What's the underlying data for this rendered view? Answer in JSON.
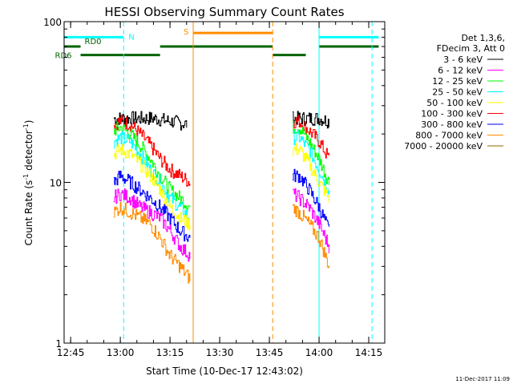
{
  "chart_data": {
    "type": "line",
    "title": "HESSI Observing Summary Count Rates",
    "xlabel": "Start Time (10-Dec-17 12:43:02)",
    "ylabel": "Count Rate (s⁻¹ detector⁻¹)",
    "ylabel_parts": {
      "base": "Count Rate (s",
      "exp1": "-1",
      "mid": " detector",
      "exp2": "-1",
      "end": ")"
    },
    "y_scale": "log",
    "ylim": [
      1,
      100
    ],
    "xlim": [
      "12:43:02",
      "14:19:50"
    ],
    "x_ticks": [
      "12:45",
      "13:00",
      "13:15",
      "13:30",
      "13:45",
      "14:00",
      "14:15"
    ],
    "y_ticks": [
      "1",
      "10",
      "100"
    ],
    "footer_timestamp": "11-Dec-2017 11:09",
    "legend": {
      "header_lines": [
        "Det 1,3,6,",
        "FDecim 3, Att 0"
      ],
      "items": [
        {
          "label": "3 - 6 keV",
          "color": "#000000"
        },
        {
          "label": "6 - 12 keV",
          "color": "#ff00ff"
        },
        {
          "label": "12 - 25 keV",
          "color": "#00ff00"
        },
        {
          "label": "25 - 50 keV",
          "color": "#00ffff"
        },
        {
          "label": "50 - 100 keV",
          "color": "#ffff00"
        },
        {
          "label": "100 - 300 keV",
          "color": "#ff0000"
        },
        {
          "label": "300 - 800 keV",
          "color": "#0000ff"
        },
        {
          "label": "800 - 7000 keV",
          "color": "#ff8c00"
        },
        {
          "label": "7000 - 20000 keV",
          "color": "#996600"
        }
      ]
    },
    "series": [
      {
        "name": "3 - 6 keV",
        "color": "#000000",
        "segments": [
          {
            "t": [
              "12:58",
              "13:05",
              "13:10",
              "13:15",
              "13:20"
            ],
            "v": [
              25,
              25,
              25,
              24,
              23
            ]
          },
          {
            "t": [
              "13:52",
              "13:55",
              "14:00",
              "14:03"
            ],
            "v": [
              25,
              25,
              25,
              24
            ]
          }
        ]
      },
      {
        "name": "100 - 300 keV",
        "color": "#ff0000",
        "segments": [
          {
            "t": [
              "12:58",
              "13:00",
              "13:03",
              "13:06",
              "13:09",
              "13:12",
              "13:15",
              "13:18",
              "13:21"
            ],
            "v": [
              23,
              24,
              23,
              20,
              17,
              14,
              12,
              11,
              10
            ]
          },
          {
            "t": [
              "13:52",
              "13:54",
              "13:57",
              "14:00",
              "14:03"
            ],
            "v": [
              24,
              24,
              21,
              18,
              14
            ]
          }
        ]
      },
      {
        "name": "12 - 25 keV",
        "color": "#00ff00",
        "segments": [
          {
            "t": [
              "12:58",
              "13:00",
              "13:03",
              "13:06",
              "13:09",
              "13:12",
              "13:15",
              "13:18",
              "13:21"
            ],
            "v": [
              21,
              22,
              20,
              17,
              14,
              11,
              9,
              8,
              7
            ]
          },
          {
            "t": [
              "13:52",
              "13:54",
              "13:57",
              "14:00",
              "14:03"
            ],
            "v": [
              22,
              22,
              18,
              14,
              10
            ]
          }
        ]
      },
      {
        "name": "25 - 50 keV",
        "color": "#00ffff",
        "segments": [
          {
            "t": [
              "12:58",
              "13:00",
              "13:03",
              "13:06",
              "13:09",
              "13:12",
              "13:15",
              "13:18",
              "13:21"
            ],
            "v": [
              18,
              19,
              18,
              15,
              12,
              10,
              8,
              7,
              6
            ]
          },
          {
            "t": [
              "13:52",
              "13:54",
              "13:57",
              "14:00",
              "14:03"
            ],
            "v": [
              19,
              19,
              16,
              12,
              9
            ]
          }
        ]
      },
      {
        "name": "50 - 100 keV",
        "color": "#ffff00",
        "segments": [
          {
            "t": [
              "12:58",
              "13:00",
              "13:03",
              "13:06",
              "13:09",
              "13:12",
              "13:15",
              "13:18",
              "13:21"
            ],
            "v": [
              15,
              16,
              15,
              13,
              11,
              9,
              7,
              6,
              5.5
            ]
          },
          {
            "t": [
              "13:52",
              "13:54",
              "13:57",
              "14:00",
              "14:03"
            ],
            "v": [
              16,
              16,
              13,
              10,
              8
            ]
          }
        ]
      },
      {
        "name": "300 - 800 keV",
        "color": "#0000ff",
        "segments": [
          {
            "t": [
              "12:58",
              "13:00",
              "13:03",
              "13:06",
              "13:09",
              "13:12",
              "13:15",
              "13:18",
              "13:21"
            ],
            "v": [
              10,
              11,
              10,
              9,
              8,
              7,
              6,
              5,
              4.5
            ]
          },
          {
            "t": [
              "13:52",
              "13:54",
              "13:57",
              "14:00",
              "14:03"
            ],
            "v": [
              11,
              11,
              9,
              7,
              5
            ]
          }
        ]
      },
      {
        "name": "6 - 12 keV",
        "color": "#ff00ff",
        "segments": [
          {
            "t": [
              "12:58",
              "13:00",
              "13:03",
              "13:06",
              "13:09",
              "13:12",
              "13:15",
              "13:18",
              "13:21"
            ],
            "v": [
              8,
              8.5,
              8,
              7,
              6.5,
              6,
              5,
              4,
              3.5
            ]
          },
          {
            "t": [
              "13:52",
              "13:54",
              "13:57",
              "14:00",
              "14:03"
            ],
            "v": [
              8.5,
              8,
              7,
              5.5,
              4
            ]
          }
        ]
      },
      {
        "name": "800 - 7000 keV",
        "color": "#ff8c00",
        "segments": [
          {
            "t": [
              "12:58",
              "13:00",
              "13:03",
              "13:06",
              "13:09",
              "13:12",
              "13:15",
              "13:18",
              "13:21"
            ],
            "v": [
              6.5,
              7,
              6.5,
              6,
              5.5,
              4.5,
              3.5,
              3,
              2.5
            ]
          },
          {
            "t": [
              "13:52",
              "13:54",
              "13:57",
              "14:00",
              "14:03"
            ],
            "v": [
              7,
              6.5,
              5.5,
              4.5,
              3
            ]
          }
        ]
      }
    ],
    "status_bars": [
      {
        "label": "N",
        "color": "#00ffff",
        "segments": [
          [
            "12:43",
            "13:01"
          ],
          [
            "14:00",
            "14:18"
          ]
        ],
        "level": 80
      },
      {
        "label": "S",
        "color": "#ff8c00",
        "segments": [
          [
            "13:22",
            "13:46"
          ]
        ],
        "level": 85
      },
      {
        "label": "RD0",
        "color": "#006400",
        "segments": [
          [
            "12:43",
            "12:48"
          ],
          [
            "13:12",
            "13:46"
          ],
          [
            "14:00",
            "14:18"
          ]
        ],
        "level": 70
      },
      {
        "label": "RD6",
        "color": "#006400",
        "segments": [
          [
            "12:48",
            "13:12"
          ],
          [
            "13:46",
            "13:56"
          ]
        ],
        "level": 62
      }
    ],
    "vertical_lines": [
      {
        "t": "12:43",
        "color": "#00ffff",
        "style": "solid"
      },
      {
        "t": "13:01",
        "color": "#00ffff",
        "style": "dashed"
      },
      {
        "t": "13:22",
        "color": "#ff8c00",
        "style": "solid"
      },
      {
        "t": "13:46",
        "color": "#ff8c00",
        "style": "dashed"
      },
      {
        "t": "14:00",
        "color": "#00ffff",
        "style": "solid"
      },
      {
        "t": "14:16",
        "color": "#00ffff",
        "style": "dashed"
      }
    ]
  }
}
